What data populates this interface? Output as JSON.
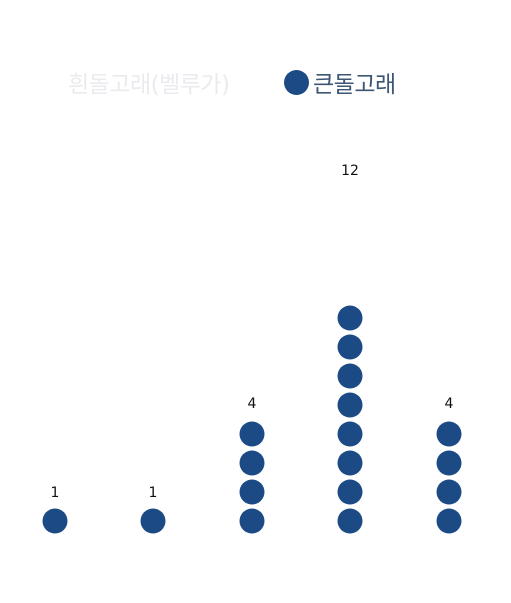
{
  "chart_data": {
    "type": "pictogram",
    "categories": [
      "",
      "",
      "",
      "",
      ""
    ],
    "series": [
      {
        "name": "흰돌고래(벨루가)",
        "values": [
          1,
          1,
          4,
          12,
          4
        ],
        "color": "#e9ebee",
        "visible": false
      },
      {
        "name": "큰돌고래",
        "values": [
          1,
          1,
          4,
          12,
          4
        ],
        "color": "#1b4a85",
        "visible": true
      }
    ],
    "data_labels": [
      "1",
      "1",
      "4",
      "12",
      "4"
    ],
    "legend_position": "top",
    "grid": false
  }
}
